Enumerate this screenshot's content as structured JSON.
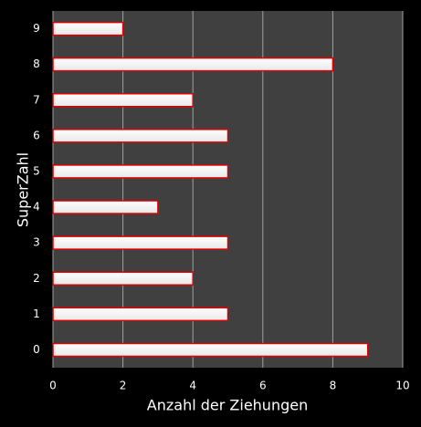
{
  "chart_data": {
    "type": "bar",
    "orientation": "horizontal",
    "xlabel": "Anzahl der Ziehungen",
    "ylabel": "SuperZahl",
    "categories": [
      "0",
      "1",
      "2",
      "3",
      "4",
      "5",
      "6",
      "7",
      "8",
      "9"
    ],
    "values": [
      9,
      5,
      4,
      5,
      3,
      5,
      5,
      4,
      8,
      2
    ],
    "color": "#ffffff",
    "edgecolor": "#e00000",
    "xlim": [
      0,
      10
    ],
    "xticks": [
      0,
      2,
      4,
      6,
      8,
      10
    ],
    "grid": true
  }
}
